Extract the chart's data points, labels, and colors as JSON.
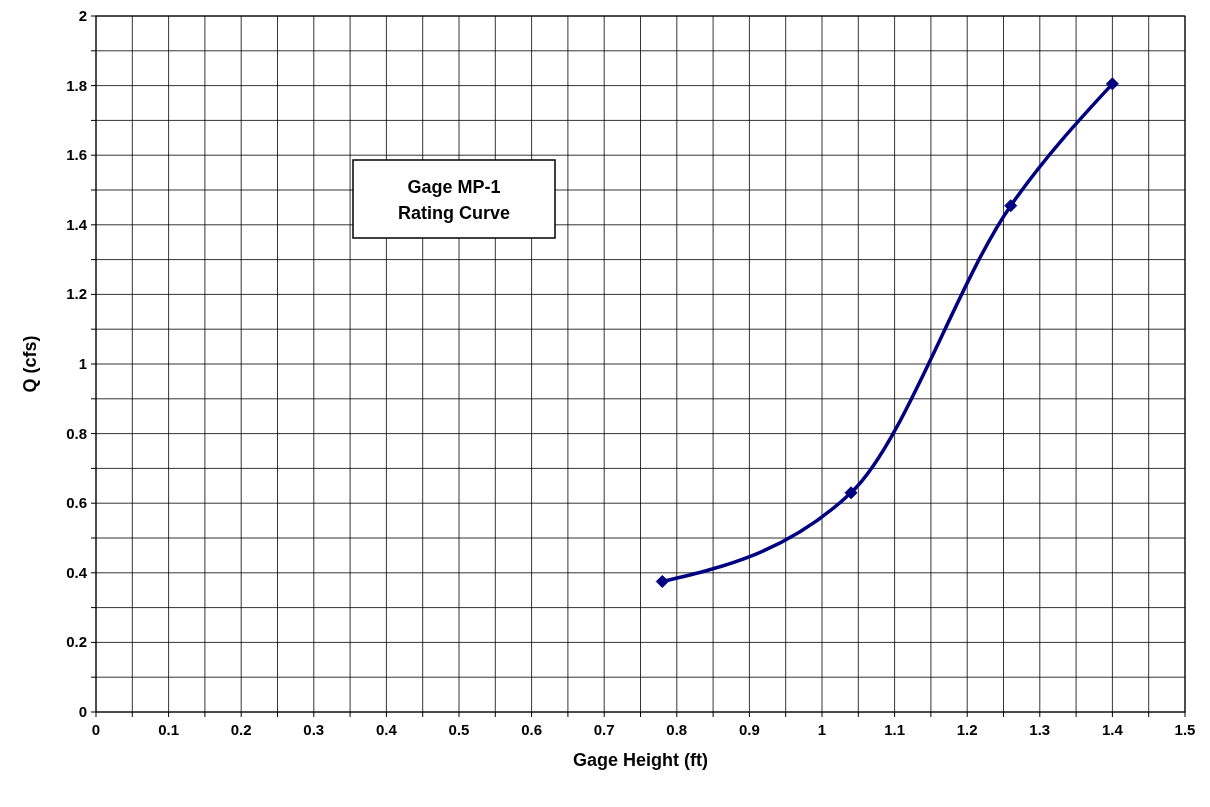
{
  "chart_data": {
    "type": "line",
    "title": "Gage MP-1\nRating Curve",
    "xlabel": "Gage Height (ft)",
    "ylabel": "Q (cfs)",
    "x": [
      0.78,
      1.04,
      1.26,
      1.4
    ],
    "series": [
      {
        "color": "#000080",
        "values": [
          0.375,
          0.63,
          1.455,
          1.805
        ]
      }
    ],
    "xlim": [
      0,
      1.5
    ],
    "xticks": [
      0,
      {
        "value": 0.05,
        "label": null
      },
      0.1,
      {
        "value": 0.15,
        "label": null
      },
      0.2,
      {
        "value": 0.25,
        "label": null
      },
      0.3,
      {
        "value": 0.35,
        "label": null
      },
      0.4,
      {
        "value": 0.45,
        "label": null
      },
      0.5,
      {
        "value": 0.55,
        "label": null
      },
      0.6,
      {
        "value": 0.65,
        "label": null
      },
      0.7,
      {
        "value": 0.75,
        "label": null
      },
      0.8,
      {
        "value": 0.85,
        "label": null
      },
      0.9,
      {
        "value": 0.95,
        "label": null
      },
      1,
      {
        "value": 1.05,
        "label": null
      },
      1.1,
      {
        "value": 1.15,
        "label": null
      },
      1.2,
      {
        "value": 1.25,
        "label": null
      },
      1.3,
      {
        "value": 1.35,
        "label": null
      },
      1.4,
      {
        "value": 1.45,
        "label": null
      },
      1.5
    ],
    "ylim": [
      0,
      2
    ],
    "yticks": [
      0,
      {
        "value": 0.1,
        "label": null
      },
      0.2,
      {
        "value": 0.3,
        "label": null
      },
      0.4,
      {
        "value": 0.5,
        "label": null
      },
      0.6,
      {
        "value": 0.7,
        "label": null
      },
      0.8,
      {
        "value": 0.9,
        "label": null
      },
      1,
      {
        "value": 1.1,
        "label": null
      },
      1.2,
      {
        "value": 1.3,
        "label": null
      },
      1.4,
      {
        "value": 1.5,
        "label": null
      },
      1.6,
      {
        "value": 1.7,
        "label": null
      },
      1.8,
      {
        "value": 1.9,
        "label": null
      },
      2
    ],
    "grid": true,
    "marker": "diamond",
    "line_style": "solid"
  }
}
